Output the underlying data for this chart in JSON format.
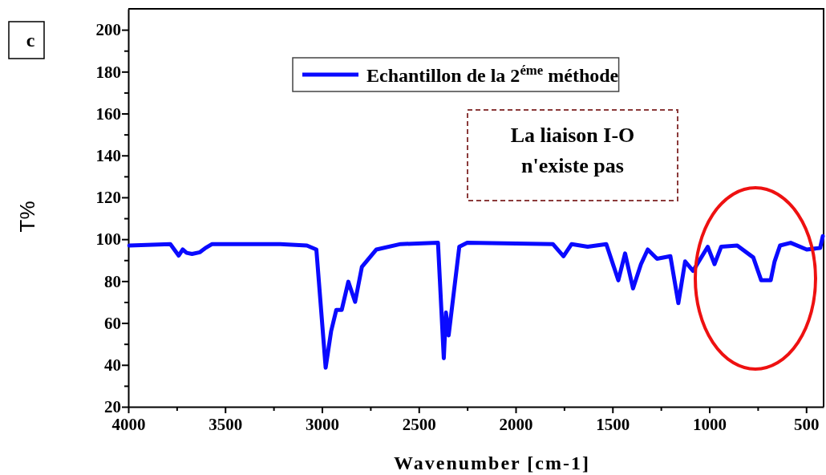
{
  "chart_data": {
    "type": "line",
    "xlabel": "Wavenumber [cm-1]",
    "ylabel": "T%",
    "xlim": [
      4000,
      410
    ],
    "ylim": [
      20,
      210
    ],
    "xticks": [
      4000,
      {
        "value": 3750,
        "label": null
      },
      3500,
      {
        "value": 3250,
        "label": null
      },
      3000,
      {
        "value": 2750,
        "label": null
      },
      2500,
      {
        "value": 2250,
        "label": null
      },
      2000,
      {
        "value": 1750,
        "label": null
      },
      1500,
      {
        "value": 1250,
        "label": null
      },
      1000,
      {
        "value": 750,
        "label": null
      },
      500
    ],
    "yticks": [
      20,
      {
        "value": 30,
        "label": null
      },
      40,
      {
        "value": 50,
        "label": null
      },
      60,
      {
        "value": 70,
        "label": null
      },
      80,
      {
        "value": 90,
        "label": null
      },
      100,
      {
        "value": 110,
        "label": null
      },
      120,
      {
        "value": 130,
        "label": null
      },
      140,
      {
        "value": 150,
        "label": null
      },
      160,
      {
        "value": 170,
        "label": null
      },
      180,
      {
        "value": 190,
        "label": null
      },
      200
    ],
    "grid": false,
    "legend": "top",
    "line_style": "solid",
    "marker": "none",
    "annotations": [
      "c",
      "La liaison I-O\nn'existe pas"
    ],
    "series": [
      {
        "name": "Echantillon de la 2$^{éme}$ méthode",
        "color": "#0a0aff",
        "x": [
          3995,
          3783,
          3740,
          3719,
          3699,
          3671,
          3630,
          3602,
          3567,
          3216,
          3078,
          3029,
          2981,
          2953,
          2926,
          2898,
          2864,
          2829,
          2794,
          2719,
          2594,
          2401,
          2371,
          2360,
          2346,
          2291,
          2250,
          1808,
          1753,
          1711,
          1628,
          1532,
          1470,
          1435,
          1394,
          1353,
          1318,
          1270,
          1201,
          1160,
          1125,
          1084,
          1008,
          973,
          939,
          856,
          773,
          732,
          683,
          663,
          635,
          580,
          497,
          428,
          414
        ],
        "values": [
          97.0,
          97.7,
          92.2,
          95.1,
          93.5,
          93.0,
          93.8,
          95.8,
          97.7,
          97.7,
          97.0,
          95.1,
          38.7,
          56,
          66.3,
          66.3,
          79.7,
          70.1,
          86.8,
          95.1,
          97.7,
          98.3,
          43.2,
          65,
          54.1,
          96.4,
          98.3,
          97.7,
          91.9,
          97.7,
          96.4,
          97.7,
          80.4,
          93.2,
          76.5,
          88.1,
          95.1,
          90.7,
          91.9,
          69.5,
          89.4,
          84.9,
          96.4,
          88.1,
          96.4,
          97.0,
          91.3,
          80.4,
          80.4,
          89.4,
          97.0,
          98.3,
          95.1,
          95.8,
          101.5
        ]
      }
    ]
  }
}
